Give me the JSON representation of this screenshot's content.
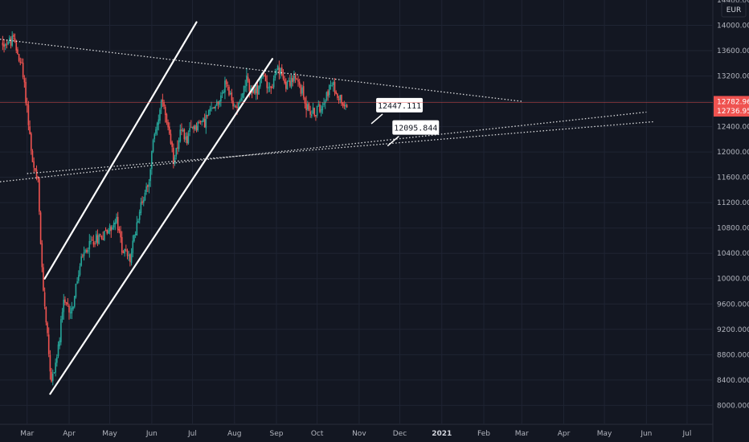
{
  "currency_label": "EUR",
  "colors": {
    "background": "#131722",
    "grid": "#1f2433",
    "candle_up": "#26a69a",
    "candle_down": "#ef5350",
    "axis_text": "#b2b5be",
    "trendline": "#ffffff",
    "price_tag": "#ef5350",
    "callout_bg": "#ffffff"
  },
  "chart_data": {
    "type": "candlestick",
    "title": "",
    "xlabel": "",
    "ylabel": "",
    "ylim": [
      7700,
      14400
    ],
    "xlim": [
      "2020-02-10",
      "2021-07-20"
    ],
    "y_ticks": [
      8000,
      8400,
      8800,
      9200,
      9600,
      10000,
      10400,
      10800,
      11200,
      11600,
      12000,
      12400,
      12800,
      13200,
      13600,
      14000
    ],
    "y_tick_labels": [
      "8000.000",
      "8400.000",
      "8800.000",
      "9200.000",
      "9600.000",
      "10000.000",
      "10400.000",
      "10800.000",
      "11200.000",
      "11600.000",
      "12000.000",
      "12400.000",
      "12800.000",
      "13200.000",
      "13600.000",
      "14000.000"
    ],
    "top_partial_tick": {
      "value": 14400,
      "label": "14400.000"
    },
    "x_ticks": [
      {
        "date": "2020-03-01",
        "label": "Mar"
      },
      {
        "date": "2020-04-01",
        "label": "Apr"
      },
      {
        "date": "2020-05-01",
        "label": "May"
      },
      {
        "date": "2020-06-01",
        "label": "Jun"
      },
      {
        "date": "2020-07-01",
        "label": "Jul"
      },
      {
        "date": "2020-08-01",
        "label": "Aug"
      },
      {
        "date": "2020-09-01",
        "label": "Sep"
      },
      {
        "date": "2020-10-01",
        "label": "Oct"
      },
      {
        "date": "2020-11-01",
        "label": "Nov"
      },
      {
        "date": "2020-12-01",
        "label": "Dec"
      },
      {
        "date": "2021-01-01",
        "label": "2021",
        "bold": true
      },
      {
        "date": "2021-02-01",
        "label": "Feb"
      },
      {
        "date": "2021-03-01",
        "label": "Mar"
      },
      {
        "date": "2021-04-01",
        "label": "Apr"
      },
      {
        "date": "2021-05-01",
        "label": "May"
      },
      {
        "date": "2021-06-01",
        "label": "Jun"
      },
      {
        "date": "2021-07-01",
        "label": "Jul"
      }
    ],
    "anchors": [
      [
        "2020-02-12",
        13720
      ],
      [
        "2020-02-20",
        13760
      ],
      [
        "2020-02-26",
        13350
      ],
      [
        "2020-03-01",
        12700
      ],
      [
        "2020-03-05",
        11800
      ],
      [
        "2020-03-09",
        11500
      ],
      [
        "2020-03-12",
        10100
      ],
      [
        "2020-03-16",
        9100
      ],
      [
        "2020-03-19",
        8350
      ],
      [
        "2020-03-24",
        8900
      ],
      [
        "2020-03-28",
        9600
      ],
      [
        "2020-04-03",
        9500
      ],
      [
        "2020-04-10",
        10300
      ],
      [
        "2020-04-18",
        10600
      ],
      [
        "2020-04-26",
        10700
      ],
      [
        "2020-05-06",
        10900
      ],
      [
        "2020-05-10",
        10500
      ],
      [
        "2020-05-16",
        10300
      ],
      [
        "2020-05-22",
        11000
      ],
      [
        "2020-05-30",
        11600
      ],
      [
        "2020-06-03",
        12300
      ],
      [
        "2020-06-09",
        12800
      ],
      [
        "2020-06-13",
        12300
      ],
      [
        "2020-06-17",
        11900
      ],
      [
        "2020-06-22",
        12300
      ],
      [
        "2020-06-27",
        12200
      ],
      [
        "2020-07-01",
        12400
      ],
      [
        "2020-07-10",
        12500
      ],
      [
        "2020-07-16",
        12700
      ],
      [
        "2020-07-22",
        12900
      ],
      [
        "2020-07-26",
        13100
      ],
      [
        "2020-07-31",
        12700
      ],
      [
        "2020-08-04",
        12800
      ],
      [
        "2020-08-10",
        13100
      ],
      [
        "2020-08-16",
        12900
      ],
      [
        "2020-08-22",
        13200
      ],
      [
        "2020-08-28",
        13000
      ],
      [
        "2020-09-02",
        13300
      ],
      [
        "2020-09-08",
        13100
      ],
      [
        "2020-09-14",
        13150
      ],
      [
        "2020-09-18",
        13050
      ],
      [
        "2020-09-24",
        12700
      ],
      [
        "2020-09-28",
        12600
      ],
      [
        "2020-10-03",
        12700
      ],
      [
        "2020-10-07",
        12900
      ],
      [
        "2020-10-12",
        13050
      ],
      [
        "2020-10-16",
        12900
      ],
      [
        "2020-10-20",
        12800
      ],
      [
        "2020-10-23",
        12737
      ]
    ],
    "trendlines": [
      {
        "name": "descending-resistance",
        "style": "dotted",
        "from": [
          "2020-02-10",
          13780
        ],
        "to": [
          "2021-03-01",
          12800
        ]
      },
      {
        "name": "ascending-support-upper",
        "style": "dotted",
        "from": [
          "2020-02-10",
          11530
        ],
        "to": [
          "2021-06-01",
          12630
        ]
      },
      {
        "name": "ascending-support-lower",
        "style": "dotted",
        "from": [
          "2020-03-01",
          11660
        ],
        "to": [
          "2021-06-07",
          12480
        ]
      },
      {
        "name": "channel-upper",
        "style": "solid",
        "from": [
          "2020-03-14",
          10000
        ],
        "to": [
          "2020-07-04",
          14050
        ]
      },
      {
        "name": "channel-lower",
        "style": "solid",
        "from": [
          "2020-03-18",
          8180
        ],
        "to": [
          "2020-08-29",
          13470
        ]
      }
    ],
    "callouts": [
      {
        "label": "12447.111",
        "value": 12447.111,
        "date": "2020-11-10"
      },
      {
        "label": "12095.844",
        "value": 12095.844,
        "date": "2020-11-22"
      }
    ],
    "price_tags": [
      {
        "label": "12782.960",
        "value": 12782.96
      },
      {
        "label": "12736.950",
        "value": 12736.95
      }
    ]
  }
}
